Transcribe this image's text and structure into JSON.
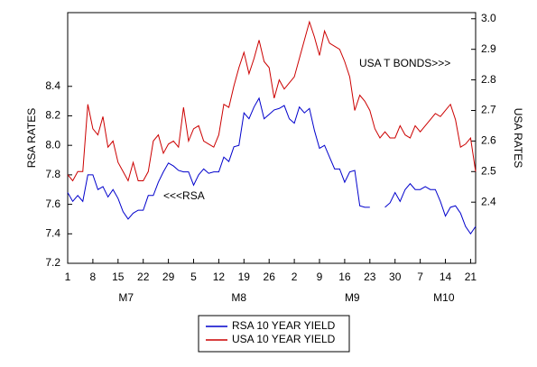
{
  "chart_data": {
    "type": "line",
    "y_label": "RSA RATES",
    "y2_label": "USA RATES",
    "annotations": [
      "USA T BONDS>>>",
      "<<<RSA"
    ],
    "xlim": [
      0,
      81
    ],
    "xticks": [
      {
        "value": 0,
        "label": "1"
      },
      {
        "value": 5,
        "label": "8"
      },
      {
        "value": 10,
        "label": "15"
      },
      {
        "value": 15,
        "label": "22"
      },
      {
        "value": 20,
        "label": "29"
      },
      {
        "value": 25,
        "label": "5"
      },
      {
        "value": 30,
        "label": "12"
      },
      {
        "value": 35,
        "label": "19"
      },
      {
        "value": 40,
        "label": "26"
      },
      {
        "value": 45,
        "label": "2"
      },
      {
        "value": 50,
        "label": "9"
      },
      {
        "value": 55,
        "label": "16"
      },
      {
        "value": 60,
        "label": "23"
      },
      {
        "value": 65,
        "label": "30"
      },
      {
        "value": 70,
        "label": "7"
      },
      {
        "value": 75,
        "label": "14"
      },
      {
        "value": 80,
        "label": "21"
      }
    ],
    "month_ticks": [
      {
        "value": 11.6,
        "label": "M7"
      },
      {
        "value": 34,
        "label": "M8"
      },
      {
        "value": 56.5,
        "label": "M9"
      },
      {
        "value": 74.7,
        "label": "M10"
      }
    ],
    "ylim": [
      7.2,
      8.9
    ],
    "yticks": [
      7.2,
      7.4,
      7.6,
      7.8,
      {
        "value": 8,
        "label": "8.0"
      },
      8.2,
      8.4
    ],
    "y2lim": [
      2.2,
      3.02
    ],
    "y2ticks": [
      2.4,
      2.5,
      2.6,
      2.7,
      2.8,
      2.9,
      {
        "value": 3,
        "label": "3.0"
      }
    ],
    "series": [
      {
        "name": "RSA 10 YEAR YIELD",
        "color": "#0000cc",
        "axis": "y",
        "values": [
          7.68,
          7.62,
          7.66,
          7.62,
          7.8,
          7.8,
          7.7,
          7.72,
          7.65,
          7.7,
          7.64,
          7.55,
          7.5,
          7.54,
          7.56,
          7.56,
          7.66,
          7.66,
          7.75,
          7.82,
          7.88,
          7.86,
          7.83,
          7.82,
          7.82,
          7.73,
          7.8,
          7.84,
          7.81,
          7.82,
          7.82,
          7.92,
          7.89,
          7.99,
          8.0,
          8.22,
          8.18,
          8.26,
          8.32,
          8.18,
          8.21,
          8.24,
          8.25,
          8.27,
          8.18,
          8.15,
          8.26,
          8.22,
          8.25,
          8.1,
          7.98,
          8.0,
          7.92,
          7.84,
          7.84,
          7.75,
          7.82,
          7.83,
          7.59,
          7.58,
          7.58,
          null,
          null,
          7.58,
          7.61,
          7.68,
          7.62,
          7.7,
          7.74,
          7.7,
          7.7,
          7.72,
          7.7,
          7.7,
          7.62,
          7.52,
          7.58,
          7.59,
          7.54,
          7.45,
          7.4,
          7.45
        ]
      },
      {
        "name": "USA 10 YEAR YIELD",
        "color": "#cc0000",
        "axis": "y2",
        "values": [
          2.49,
          2.47,
          2.5,
          2.5,
          2.72,
          2.64,
          2.62,
          2.68,
          2.58,
          2.6,
          2.53,
          2.5,
          2.47,
          2.53,
          2.47,
          2.47,
          2.5,
          2.6,
          2.62,
          2.56,
          2.59,
          2.6,
          2.58,
          2.71,
          2.6,
          2.64,
          2.65,
          2.6,
          2.59,
          2.58,
          2.62,
          2.72,
          2.71,
          2.78,
          2.84,
          2.89,
          2.82,
          2.87,
          2.93,
          2.86,
          2.84,
          2.74,
          2.8,
          2.77,
          2.79,
          2.81,
          2.87,
          2.93,
          2.99,
          2.94,
          2.88,
          2.96,
          2.92,
          2.91,
          2.9,
          2.86,
          2.81,
          2.7,
          2.75,
          2.73,
          2.7,
          2.64,
          2.61,
          2.63,
          2.61,
          2.61,
          2.65,
          2.62,
          2.61,
          2.65,
          2.63,
          2.65,
          2.67,
          2.69,
          2.68,
          2.7,
          2.72,
          2.67,
          2.58,
          2.59,
          2.61,
          2.5
        ]
      }
    ]
  }
}
